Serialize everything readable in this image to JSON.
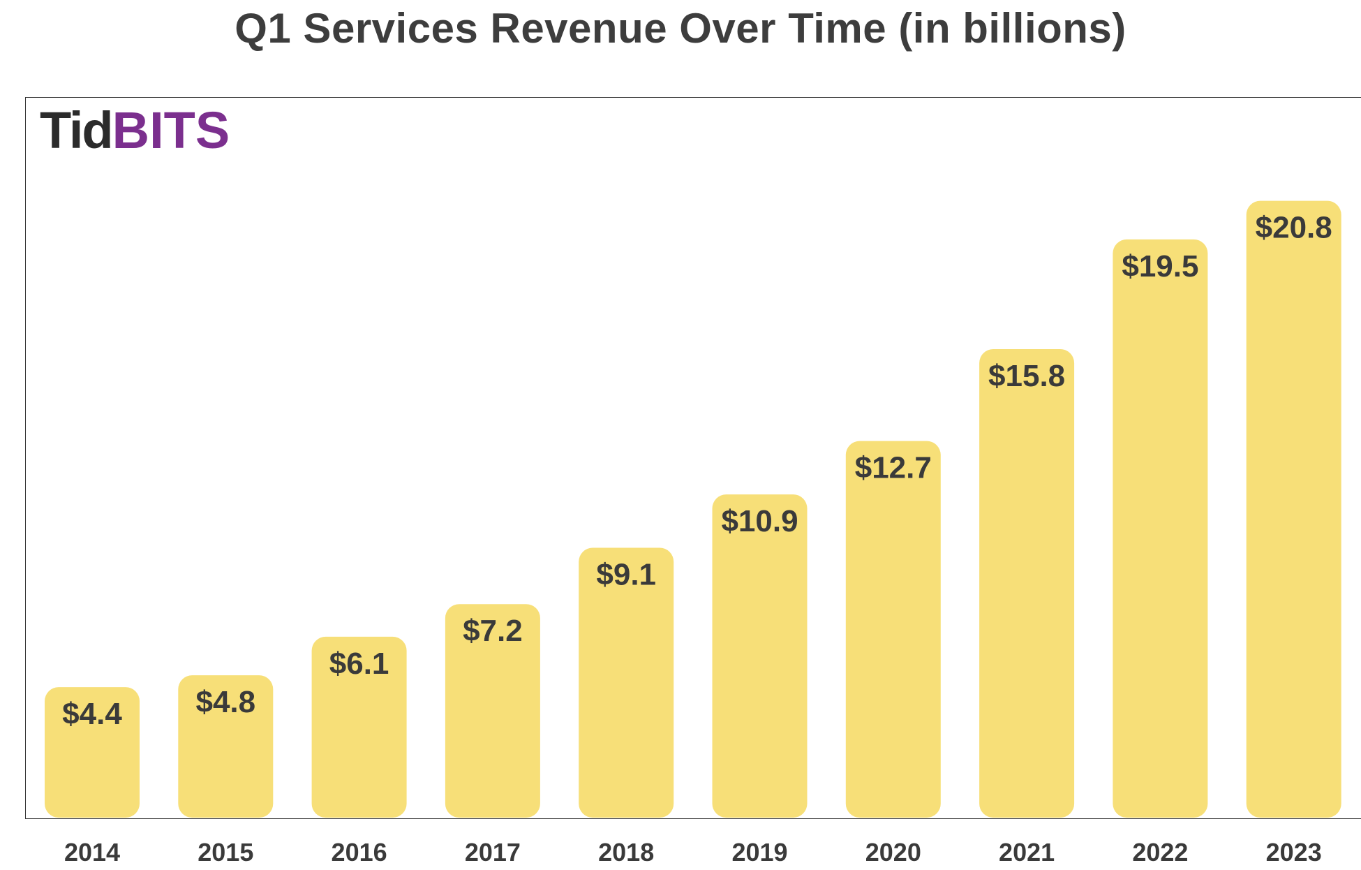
{
  "title": "Q1 Services Revenue Over Time (in billions)",
  "logo": {
    "text_part_1": "Tid",
    "text_part_2": "BITS",
    "color_part_1": "#2b2b2b",
    "color_part_2": "#7b2f8e"
  },
  "colors": {
    "bar": "#f7df78",
    "text": "#3a3a3a",
    "frame": "#333333"
  },
  "chart_data": {
    "type": "bar",
    "title": "Q1 Services Revenue Over Time (in billions)",
    "xlabel": "",
    "ylabel": "",
    "categories": [
      "2014",
      "2015",
      "2016",
      "2017",
      "2018",
      "2019",
      "2020",
      "2021",
      "2022",
      "2023"
    ],
    "values": [
      4.4,
      4.8,
      6.1,
      7.2,
      9.1,
      10.9,
      12.7,
      15.8,
      19.5,
      20.8
    ],
    "data_labels": [
      "$4.4",
      "$4.8",
      "$6.1",
      "$7.2",
      "$9.1",
      "$10.9",
      "$12.7",
      "$15.8",
      "$19.5",
      "$20.8"
    ],
    "ylim": [
      0,
      24.3
    ],
    "grid": false,
    "legend": "none"
  }
}
